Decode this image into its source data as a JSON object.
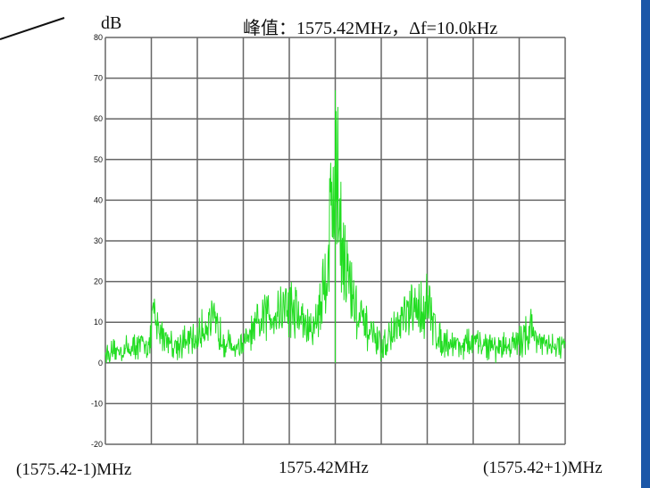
{
  "chart_data": {
    "type": "line",
    "title": "峰值：1575.42MHz，Δf=10.0kHz",
    "ylabel": "dB",
    "ylim": [
      -20,
      80
    ],
    "yticks": [
      "80",
      "70",
      "60",
      "50",
      "40",
      "30",
      "20",
      "10",
      "0",
      "-10",
      "-20"
    ],
    "xlim": [
      -1,
      1
    ],
    "x_labels": [
      "(1575.42-1)MHz",
      "1575.42MHz",
      "(1575.42+1)MHz"
    ],
    "grid": true,
    "series": [
      {
        "color": "#22dd22",
        "x": [
          -1.0,
          -0.9,
          -0.8,
          -0.8,
          -0.78,
          -0.7,
          -0.6,
          -0.55,
          -0.45,
          -0.4,
          -0.3,
          -0.2,
          -0.1,
          -0.05,
          0.0,
          0.05,
          0.1,
          0.2,
          0.3,
          0.4,
          0.45,
          0.55,
          0.6,
          0.7,
          0.8,
          0.85,
          0.9,
          1.0
        ],
        "values": [
          3,
          5,
          7,
          20,
          12,
          6,
          8,
          15,
          5,
          6,
          16,
          20,
          10,
          25,
          65,
          30,
          15,
          5,
          15,
          20,
          8,
          6,
          7,
          5,
          7,
          12,
          6,
          5
        ]
      }
    ]
  },
  "colors": {
    "trace": "#22dd22",
    "grid": "#666666",
    "frame_strip": "#1b57a8"
  }
}
